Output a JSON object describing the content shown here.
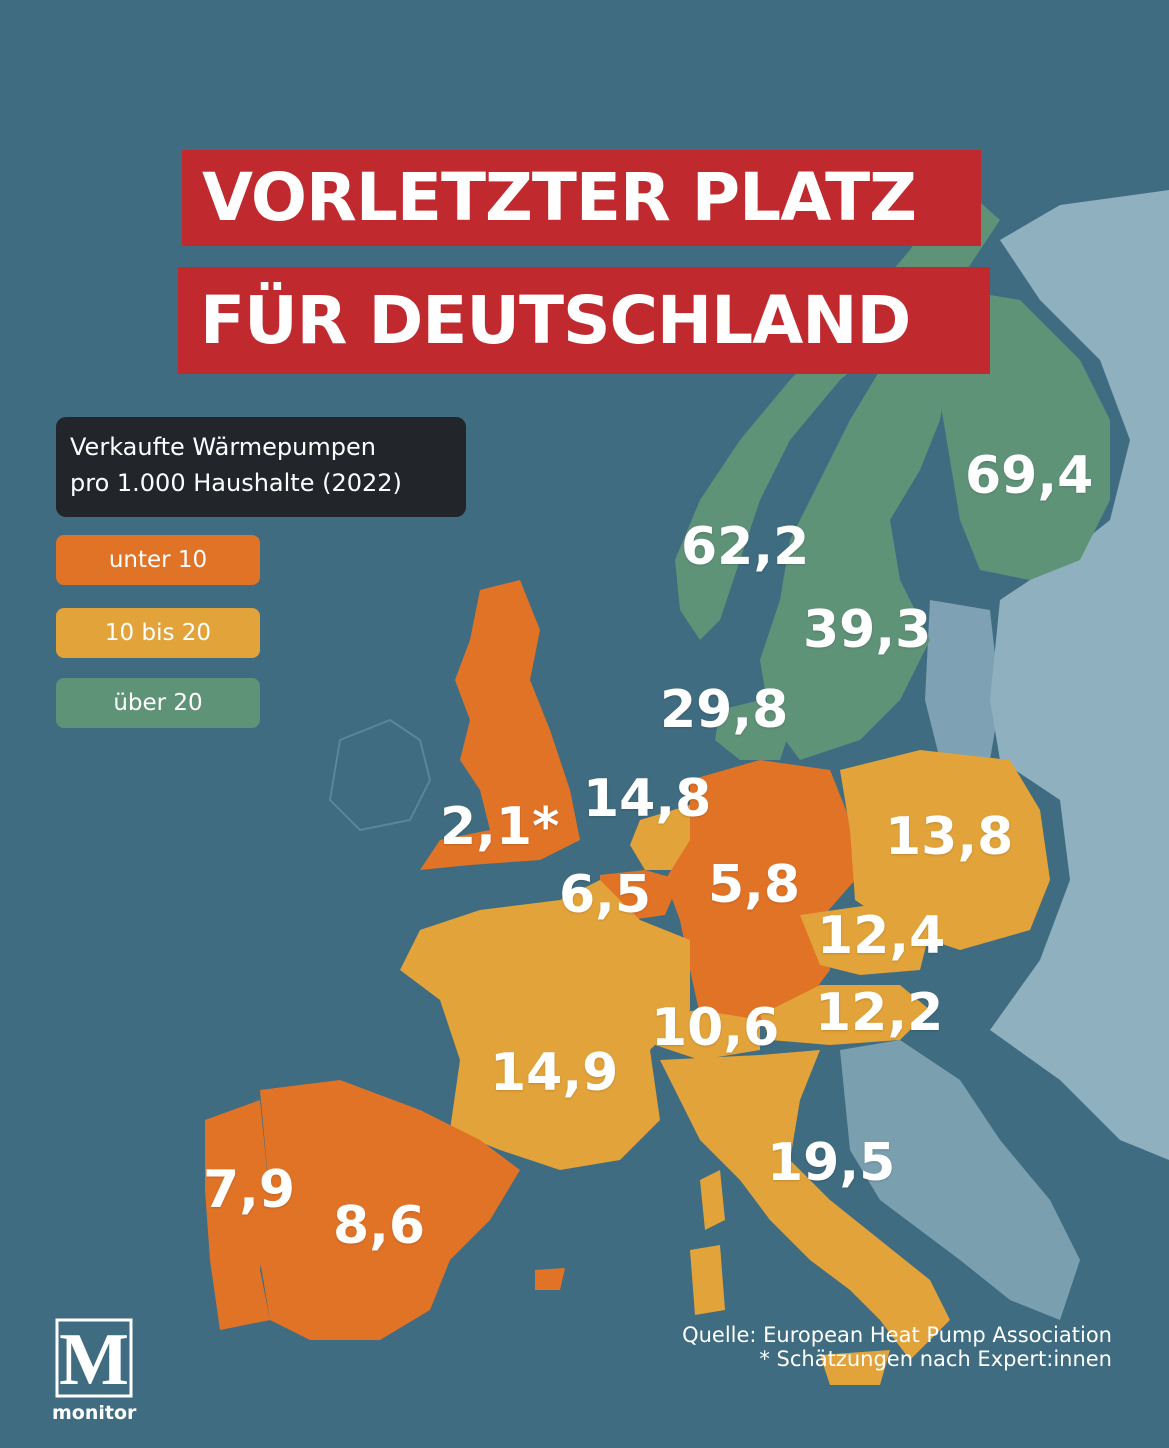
{
  "title": {
    "line1": "VORLETZTER PLATZ",
    "line2": "FÜR DEUTSCHLAND"
  },
  "legend": {
    "heading_line1": "Verkaufte Wärmepumpen",
    "heading_line2": "pro 1.000 Haushalte (2022)",
    "items": [
      {
        "label": "unter 10",
        "color": "#e17327"
      },
      {
        "label": "10 bis 20",
        "color": "#e2a33a"
      },
      {
        "label": "über 20",
        "color": "#5f9378"
      }
    ]
  },
  "colors": {
    "sea": "#3f6c80",
    "non_data_land": "#8fb0bf",
    "title_bg": "#c0292e",
    "legend_bg": "#22262b",
    "low": "#e17327",
    "mid": "#e2a33a",
    "high": "#5f9378"
  },
  "values": {
    "finland": "69,4",
    "norway": "62,2",
    "sweden": "39,3",
    "denmark": "29,8",
    "uk": "2,1*",
    "netherlands": "14,8",
    "belgium": "6,5",
    "germany": "5,8",
    "poland": "13,8",
    "czechia": "12,4",
    "austria": "12,2",
    "switzerland": "10,6",
    "france": "14,9",
    "italy": "19,5",
    "portugal": "7,9",
    "spain": "8,6"
  },
  "source": {
    "line1": "Quelle: European Heat Pump Association",
    "line2": "* Schätzungen nach Expert:innen"
  },
  "logo": {
    "letter": "M",
    "name": "monitor"
  }
}
